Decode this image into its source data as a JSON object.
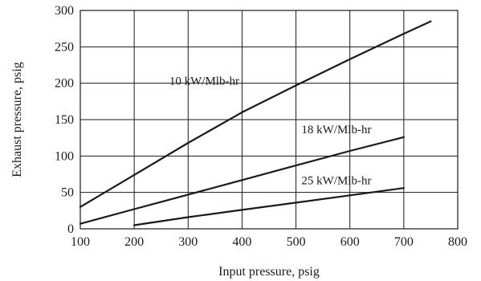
{
  "chart_data": {
    "type": "line",
    "title": "",
    "xlabel": "Input pressure, psig",
    "ylabel": "Exhaust pressure, psig",
    "xlim": [
      100,
      800
    ],
    "ylim": [
      0,
      300
    ],
    "xticks": [
      100,
      200,
      300,
      400,
      500,
      600,
      700,
      800
    ],
    "yticks": [
      0,
      50,
      100,
      150,
      200,
      250,
      300
    ],
    "grid": true,
    "legend": "none",
    "series": [
      {
        "label": "10 kW/Mlb-hr",
        "points": [
          [
            100,
            30
          ],
          [
            200,
            74
          ],
          [
            300,
            118
          ],
          [
            400,
            160
          ],
          [
            500,
            197
          ],
          [
            600,
            233
          ],
          [
            700,
            268
          ],
          [
            750,
            285
          ]
        ],
        "label_at": [
          330,
          198
        ]
      },
      {
        "label": "18 kW/Mlb-hr",
        "points": [
          [
            100,
            7
          ],
          [
            200,
            27
          ],
          [
            300,
            47
          ],
          [
            400,
            67
          ],
          [
            500,
            87
          ],
          [
            600,
            107
          ],
          [
            700,
            126
          ]
        ],
        "label_at": [
          575,
          131
        ]
      },
      {
        "label": "25 kW/Mlb-hr",
        "points": [
          [
            200,
            5
          ],
          [
            300,
            16
          ],
          [
            400,
            26
          ],
          [
            500,
            36
          ],
          [
            600,
            46
          ],
          [
            700,
            56
          ]
        ],
        "label_at": [
          575,
          61
        ]
      }
    ]
  }
}
